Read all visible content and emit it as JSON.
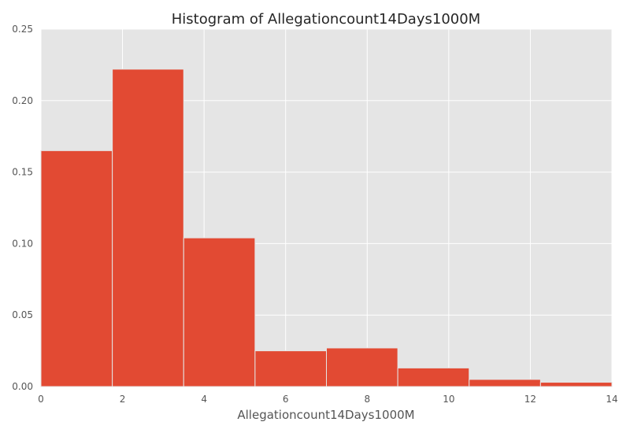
{
  "chart_data": {
    "type": "bar",
    "title": "Histogram of Allegationcount14Days1000M",
    "xlabel": "Allegationcount14Days1000M",
    "ylabel": "",
    "xlim": [
      0,
      14
    ],
    "ylim": [
      0,
      0.25
    ],
    "xticks": [
      0,
      2,
      4,
      6,
      8,
      10,
      12,
      14
    ],
    "xtick_labels": [
      "0",
      "2",
      "4",
      "6",
      "8",
      "10",
      "12",
      "14"
    ],
    "yticks": [
      0,
      0.05,
      0.1,
      0.15,
      0.2,
      0.25
    ],
    "ytick_labels": [
      "0.00",
      "0.05",
      "0.10",
      "0.15",
      "0.20",
      "0.25"
    ],
    "bin_edges": [
      0,
      1.75,
      3.5,
      5.25,
      7.0,
      8.75,
      10.5,
      12.25,
      14.0
    ],
    "values": [
      0.165,
      0.222,
      0.104,
      0.025,
      0.027,
      0.013,
      0.005,
      0.003
    ],
    "grid": true,
    "colors": {
      "bar": "#E24A33",
      "plot_background": "#E5E5E5",
      "grid": "#ffffff"
    }
  }
}
